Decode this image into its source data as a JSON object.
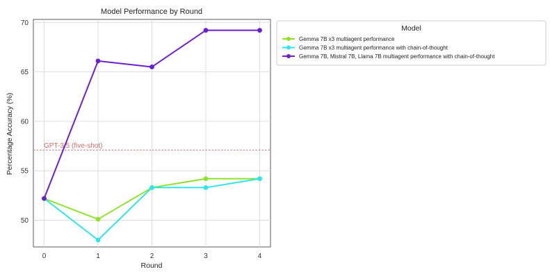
{
  "chart_data": {
    "type": "line",
    "title": "Model Performance by Round",
    "xlabel": "Round",
    "ylabel": "Percentage Accuracy (%)",
    "x": [
      0,
      1,
      2,
      3,
      4
    ],
    "xlim": [
      -0.2,
      4.2
    ],
    "ylim": [
      47.3,
      70.3
    ],
    "xticks": [
      0,
      1,
      2,
      3,
      4
    ],
    "yticks": [
      50,
      55,
      60,
      65,
      70
    ],
    "grid": true,
    "legend": {
      "title": "Model",
      "placement": "outside-right"
    },
    "series": [
      {
        "name": "Gemma 7B x3 multiagent performance",
        "color": "#8fe22a",
        "values": [
          52.2,
          50.1,
          53.3,
          54.2,
          54.2
        ]
      },
      {
        "name": "Gemma 7B x3 multiagent performance with chain-of-thought",
        "color": "#2ee6ea",
        "values": [
          52.2,
          48.0,
          53.3,
          53.3,
          54.2
        ]
      },
      {
        "name": "Gemma 7B, Mistral 7B, Llama 7B multiagent performance with chain-of-thought",
        "color": "#6a1fd0",
        "values": [
          52.2,
          66.1,
          65.5,
          69.2,
          69.2
        ]
      }
    ],
    "reference_lines": [
      {
        "label": "GPT-3.5 (five-shot)",
        "value": 57.1,
        "color": "#d06a6a",
        "style": "dashed"
      }
    ]
  }
}
